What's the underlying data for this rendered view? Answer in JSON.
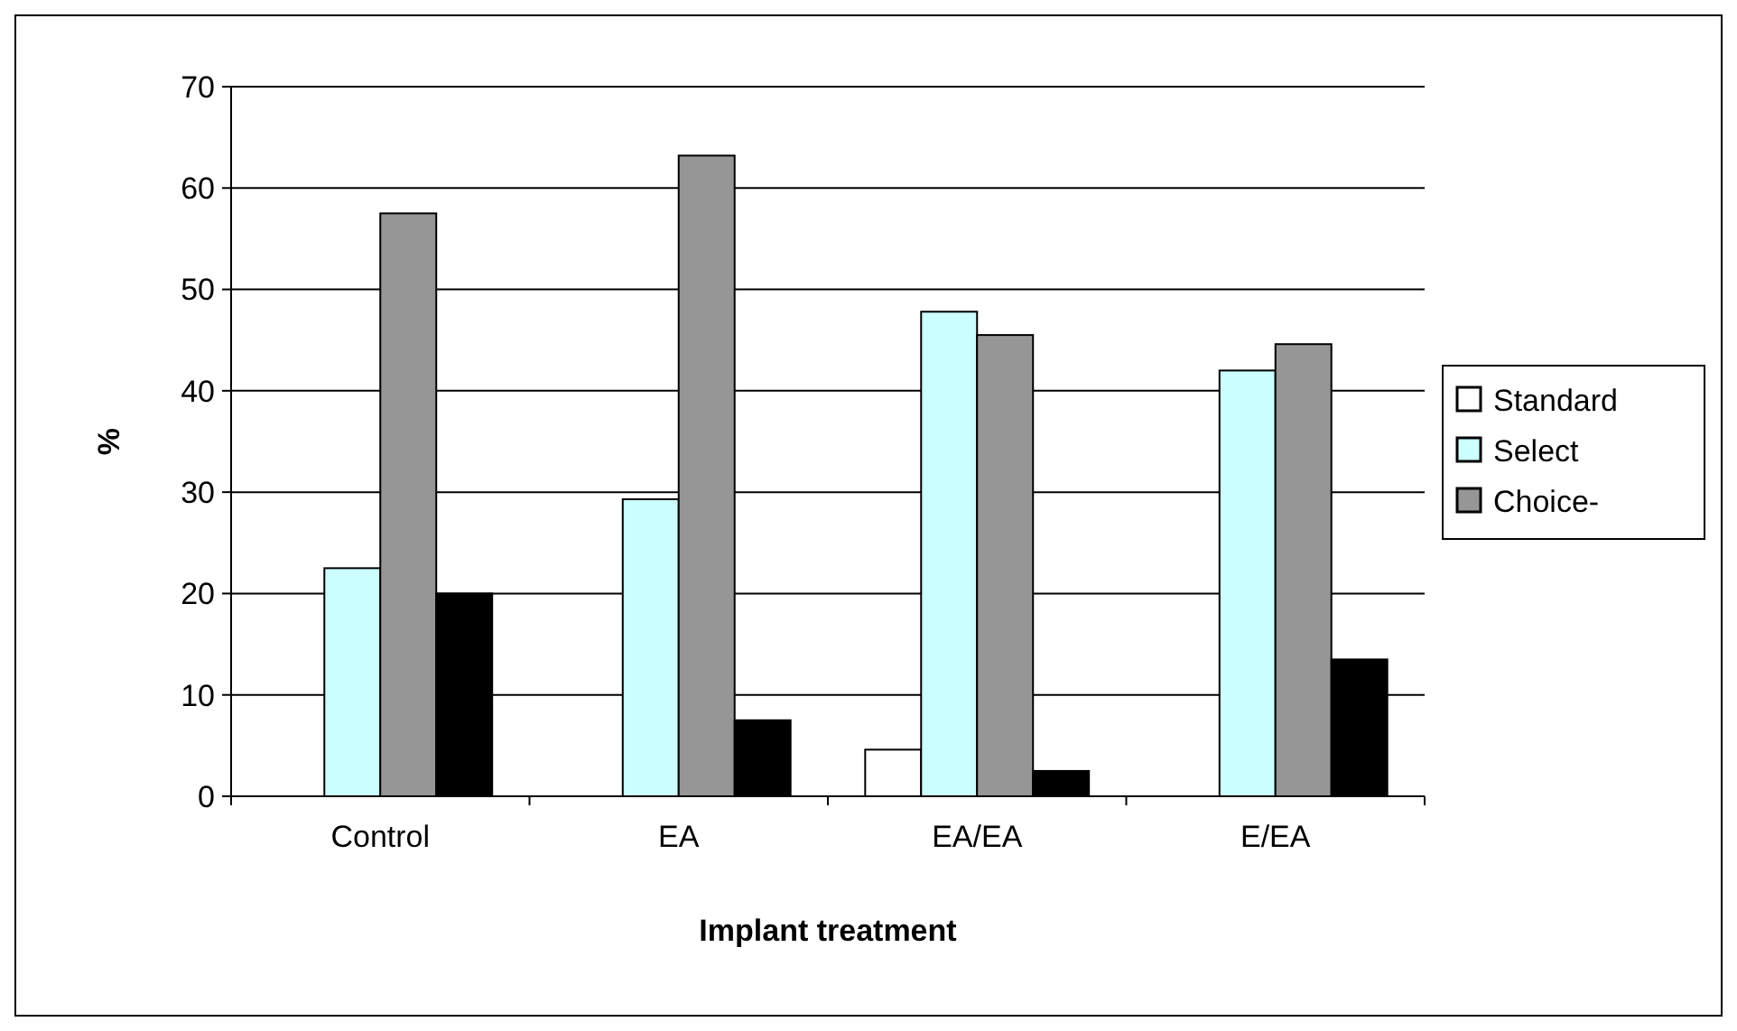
{
  "chart_data": {
    "type": "bar",
    "xlabel": "Implant treatment",
    "ylabel": "%",
    "categories": [
      "Control",
      "EA",
      "EA/EA",
      "E/EA"
    ],
    "ylim": [
      0,
      70
    ],
    "yticks": [
      0,
      10,
      20,
      30,
      40,
      50,
      60,
      70
    ],
    "grid": "y",
    "legend": "right",
    "series": [
      {
        "name": "Standard",
        "color": "#ffffff",
        "values": [
          0,
          0,
          4.6,
          0
        ]
      },
      {
        "name": "Select",
        "color": "#ccffff",
        "values": [
          22.5,
          29.3,
          47.8,
          42
        ]
      },
      {
        "name": "Choice-",
        "color": "#969696",
        "values": [
          57.5,
          63.2,
          45.5,
          44.6
        ]
      },
      {
        "color": "#000000",
        "values": [
          20,
          7.5,
          2.5,
          13.5
        ]
      }
    ]
  }
}
